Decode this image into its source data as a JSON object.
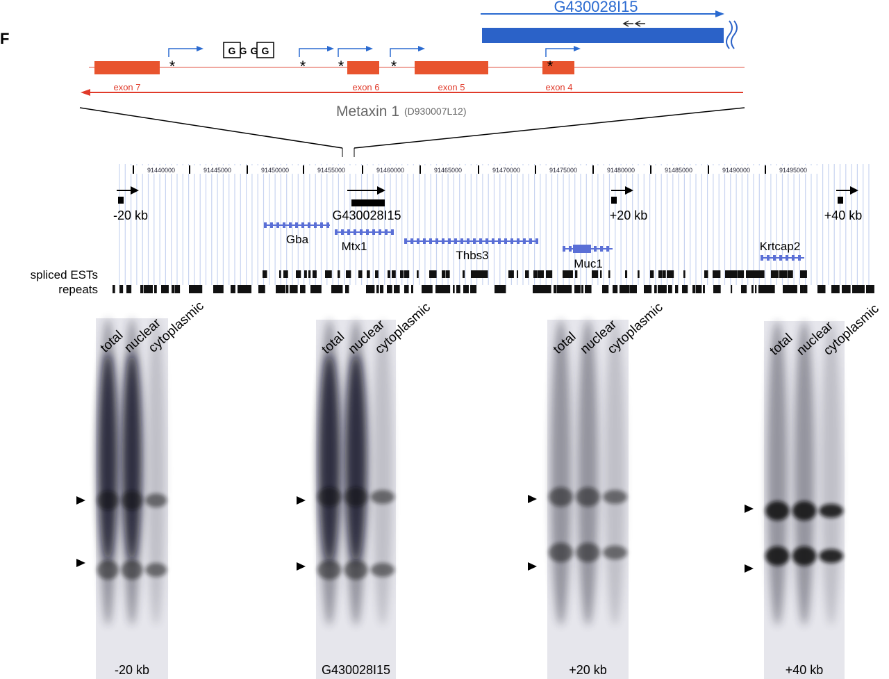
{
  "panel_label": "F",
  "top_diagram": {
    "transcript": "G430028I15",
    "g_boxes": [
      "G",
      "G",
      "G",
      "G"
    ],
    "star": "*",
    "exons": [
      "exon 7",
      "exon 6",
      "exon 5",
      "exon 4"
    ],
    "gene": "Metaxin 1",
    "gene_alias": "(D930007L12)"
  },
  "browser": {
    "coordinates": [
      "91440000",
      "91445000",
      "91450000",
      "91455000",
      "91460000",
      "91465000",
      "91470000",
      "91475000",
      "91480000",
      "91485000",
      "91490000",
      "91495000"
    ],
    "probes": [
      "-20 kb",
      "G430028I15",
      "+20 kb",
      "+40 kb"
    ],
    "genes": [
      "Gba",
      "Mtx1",
      "Thbs3",
      "Muc1",
      "Krtcap2"
    ],
    "tracks": [
      "spliced ESTs",
      "repeats"
    ]
  },
  "blots": [
    {
      "lanes": [
        "total",
        "nuclear",
        "cytoplasmic"
      ],
      "label": "-20 kb"
    },
    {
      "lanes": [
        "total",
        "nuclear",
        "cytoplasmic"
      ],
      "label": "G430028I15"
    },
    {
      "lanes": [
        "total",
        "nuclear",
        "cytoplasmic"
      ],
      "label": "+20 kb"
    },
    {
      "lanes": [
        "total",
        "nuclear",
        "cytoplasmic"
      ],
      "label": "+40 kb"
    }
  ]
}
